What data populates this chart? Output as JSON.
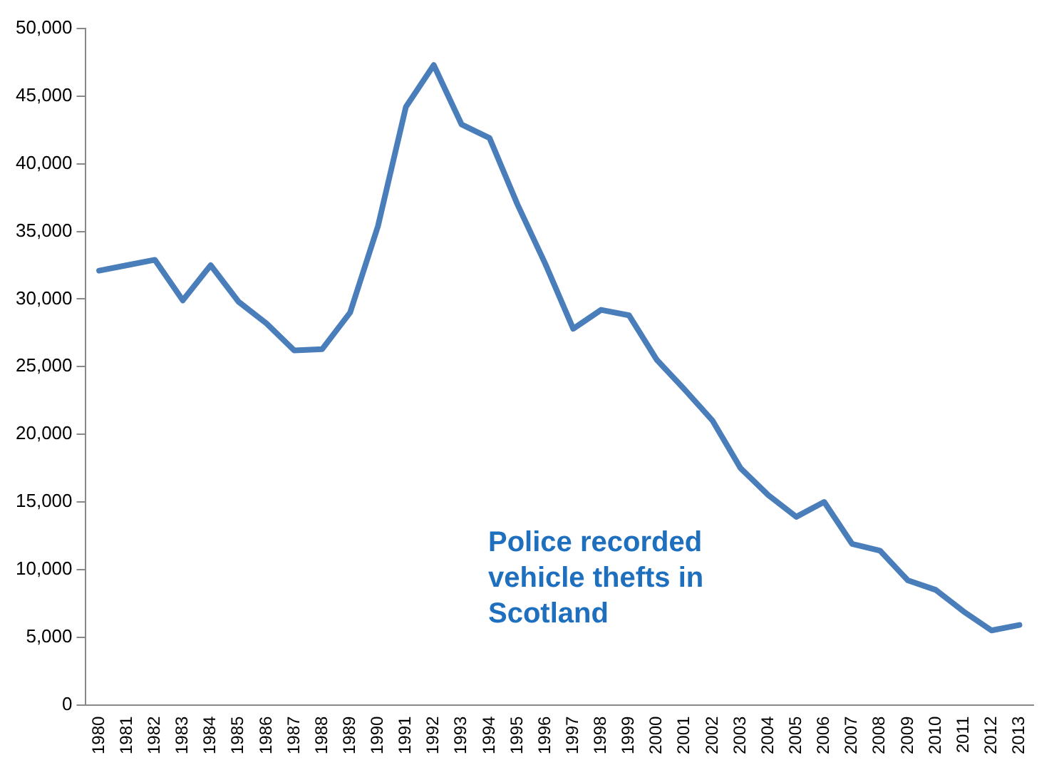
{
  "chart_data": {
    "type": "line",
    "categories": [
      "1980",
      "1981",
      "1982",
      "1983",
      "1984",
      "1985",
      "1986",
      "1987",
      "1988",
      "1989",
      "1990",
      "1991",
      "1992",
      "1993",
      "1994",
      "1995",
      "1996",
      "1997",
      "1998",
      "1999",
      "2000",
      "2001",
      "2002",
      "2003",
      "2004",
      "2005",
      "2006",
      "2007",
      "2008",
      "2009",
      "2010",
      "2011",
      "2012",
      "2013"
    ],
    "series": [
      {
        "color": "#4a7ebb",
        "values": [
          32100,
          32500,
          32900,
          29900,
          32500,
          29800,
          28200,
          26200,
          26300,
          29000,
          35400,
          44200,
          47300,
          42900,
          41900,
          37000,
          32600,
          27800,
          29200,
          28800,
          25500,
          23300,
          21000,
          17500,
          15500,
          13900,
          15000,
          11900,
          11400,
          9200,
          8500,
          6900,
          5500,
          5900
        ]
      }
    ],
    "ylim": [
      0,
      50000
    ],
    "yticks": [
      {
        "value": 0,
        "label": "0"
      },
      {
        "value": 5000,
        "label": "5,000"
      },
      {
        "value": 10000,
        "label": "10,000"
      },
      {
        "value": 15000,
        "label": "15,000"
      },
      {
        "value": 20000,
        "label": "20,000"
      },
      {
        "value": 25000,
        "label": "25,000"
      },
      {
        "value": 30000,
        "label": "30,000"
      },
      {
        "value": 35000,
        "label": "35,000"
      },
      {
        "value": 40000,
        "label": "40,000"
      },
      {
        "value": 45000,
        "label": "45,000"
      },
      {
        "value": 50000,
        "label": "50,000"
      }
    ],
    "grid": false,
    "legend": false,
    "marker": "none",
    "line_style": "solid",
    "annotations": [
      "Police recorded vehicle thefts in Scotland"
    ]
  }
}
